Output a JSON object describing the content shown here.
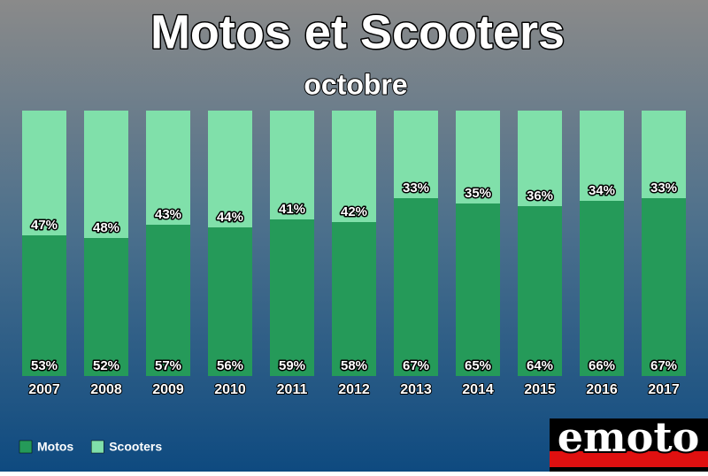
{
  "chart_data": {
    "type": "stacked_bar",
    "title": "Motos et Scooters",
    "subtitle": "octobre",
    "categories": [
      "2007",
      "2008",
      "2009",
      "2010",
      "2011",
      "2012",
      "2013",
      "2014",
      "2015",
      "2016",
      "2017"
    ],
    "series": [
      {
        "name": "Motos",
        "color": "#259a59",
        "values": [
          53,
          52,
          57,
          56,
          59,
          58,
          67,
          65,
          64,
          66,
          67
        ],
        "value_labels": [
          "53%",
          "52%",
          "57%",
          "56%",
          "59%",
          "58%",
          "67%",
          "65%",
          "64%",
          "66%",
          "67%"
        ]
      },
      {
        "name": "Scooters",
        "color": "#80e0aa",
        "values": [
          47,
          48,
          43,
          44,
          41,
          42,
          33,
          35,
          36,
          34,
          33
        ],
        "value_labels": [
          "47%",
          "48%",
          "43%",
          "44%",
          "41%",
          "42%",
          "33%",
          "35%",
          "36%",
          "34%",
          "33%"
        ]
      }
    ],
    "ylim": [
      0,
      100
    ],
    "legend": "bottom-left",
    "logo": "emoto"
  }
}
